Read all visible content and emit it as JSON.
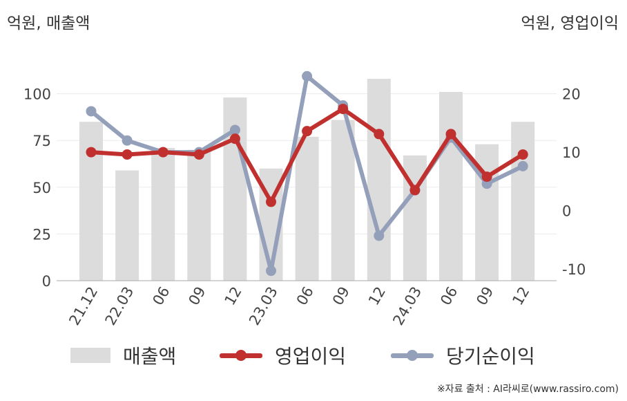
{
  "units": {
    "left": "억원, 매출액",
    "right": "억원, 영업이익"
  },
  "source": "※자료 출처 : AI라씨로(www.rassiro.com)",
  "chart_data": {
    "type": "bar+line",
    "categories": [
      "21.12",
      "22.03",
      "06",
      "09",
      "12",
      "23.03",
      "06",
      "09",
      "12",
      "24.03",
      "06",
      "09",
      "12"
    ],
    "left_axis": {
      "ylim": [
        0,
        125
      ],
      "ticks": [
        0,
        25,
        50,
        75,
        100
      ]
    },
    "right_axis": {
      "ylim": [
        -12,
        28
      ],
      "ticks": [
        -10,
        0,
        10,
        20
      ]
    },
    "grid": true,
    "legend_position": "bottom",
    "series": [
      {
        "name": "매출액",
        "type": "bar",
        "axis": "left",
        "color": "#dcdcdc",
        "values": [
          85,
          59,
          71,
          70,
          98,
          60,
          77,
          86,
          108,
          67,
          101,
          73,
          85
        ]
      },
      {
        "name": "영업이익",
        "type": "line",
        "axis": "right",
        "color": "#c0302f",
        "values": [
          10,
          9.6,
          10,
          9.6,
          12.3,
          1.5,
          13.6,
          17.4,
          13.1,
          3.5,
          13.1,
          5.8,
          9.6
        ]
      },
      {
        "name": "당기순이익",
        "type": "line",
        "axis": "right",
        "color": "#94a0ba",
        "values": [
          17,
          12,
          10,
          10,
          13.8,
          -10.3,
          23,
          18,
          -4.3,
          3.5,
          12.5,
          4.6,
          7.6
        ]
      }
    ]
  }
}
